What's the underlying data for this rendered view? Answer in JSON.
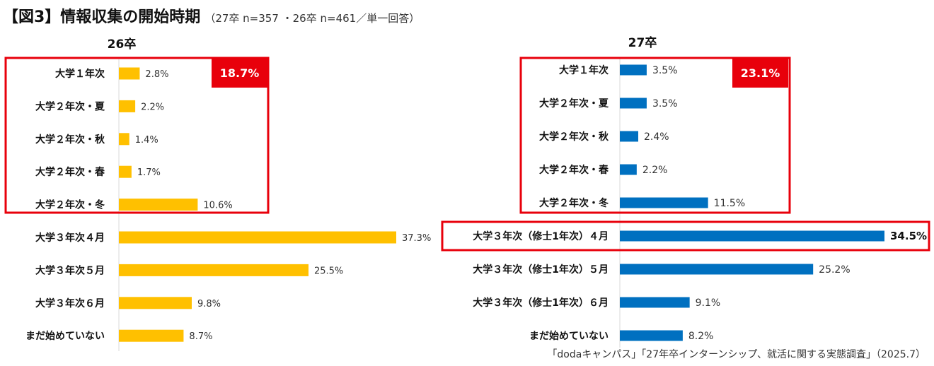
{
  "title": {
    "main": "【図3】情報収集の開始時期",
    "note": "（27卒 n=357 ・26卒 n=461／単一回答）"
  },
  "footer": {
    "source": "「dodaキャンパス」「27年卒インターンシップ、就活に関する実態調査」（2025.7）"
  },
  "colors": {
    "bar_26": "#ffc000",
    "bar_27": "#0070c0",
    "highlight": "#e8000b",
    "axis": "#d9d9d9"
  },
  "chart_data": [
    {
      "type": "bar",
      "orientation": "horizontal",
      "title": "26卒",
      "categories": [
        "大学１年次",
        "大学２年次・夏",
        "大学２年次・秋",
        "大学２年次・春",
        "大学２年次・冬",
        "大学３年次４月",
        "大学３年次５月",
        "大学３年次６月",
        "まだ始めていない"
      ],
      "values": [
        2.8,
        2.2,
        1.4,
        1.7,
        10.6,
        37.3,
        25.5,
        9.8,
        8.7
      ],
      "value_labels": [
        "2.8%",
        "2.2%",
        "1.4%",
        "1.7%",
        "10.6%",
        "37.3%",
        "25.5%",
        "9.8%",
        "8.7%"
      ],
      "xlim": [
        0,
        37.3
      ],
      "grid": false,
      "highlight_box": {
        "from": 0,
        "to": 4,
        "total_label": "18.7%"
      }
    },
    {
      "type": "bar",
      "orientation": "horizontal",
      "title": "27卒",
      "categories": [
        "大学１年次",
        "大学２年次・夏",
        "大学２年次・秋",
        "大学２年次・春",
        "大学２年次・冬",
        "大学３年次（修士1年次）４月",
        "大学３年次（修士1年次）５月",
        "大学３年次（修士1年次）６月",
        "まだ始めていない"
      ],
      "values": [
        3.5,
        3.5,
        2.4,
        2.2,
        11.5,
        34.5,
        25.2,
        9.1,
        8.2
      ],
      "value_labels": [
        "3.5%",
        "3.5%",
        "2.4%",
        "2.2%",
        "11.5%",
        "34.5%",
        "25.2%",
        "9.1%",
        "8.2%"
      ],
      "xlim": [
        0,
        34.5
      ],
      "grid": false,
      "highlight_box": {
        "from": 0,
        "to": 4,
        "total_label": "23.1%"
      },
      "highlight_row": {
        "index": 5
      }
    }
  ]
}
